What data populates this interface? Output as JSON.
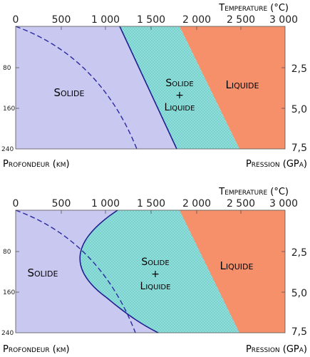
{
  "axes": {
    "temperature_label": "Temperature (°C)",
    "temperature_ticks": [
      "0",
      "500",
      "1 000",
      "1 500",
      "2 000",
      "2 500",
      "3 000"
    ],
    "depth_ticks": [
      "80",
      "160",
      "240"
    ],
    "pressure_ticks": [
      "2,5",
      "5,0",
      "7,5"
    ],
    "depth_label": "Profondeur (km)",
    "pressure_label": "Pression (GPa)"
  },
  "regions": {
    "solid": "Solide",
    "mixed_line1": "Solide",
    "mixed_line2": "+",
    "mixed_line3": "Liquide",
    "liquid": "Liquide"
  },
  "colors": {
    "solid": "#c9c8f0",
    "mixed": "#8fe0dc",
    "liquid": "#f5906a",
    "boundary": "#1f1f8f",
    "geotherm": "#2a2aa0"
  }
}
